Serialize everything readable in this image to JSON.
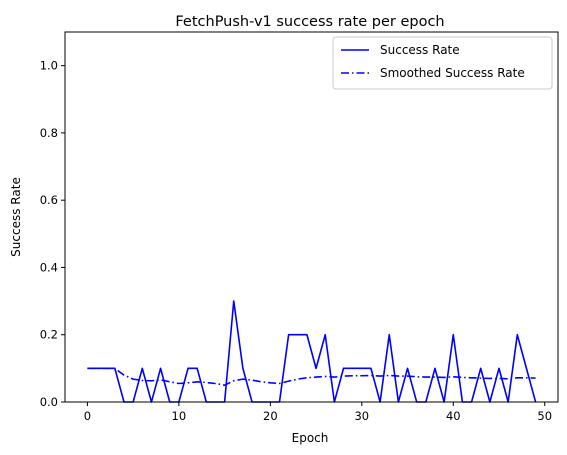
{
  "chart_data": {
    "type": "line",
    "title": "FetchPush-v1 success rate per epoch",
    "xlabel": "Epoch",
    "ylabel": "Success Rate",
    "xlim": [
      -2.45,
      51.45
    ],
    "ylim": [
      0,
      1.1
    ],
    "x_ticks": [
      0,
      10,
      20,
      30,
      40,
      50
    ],
    "y_ticks": [
      0.0,
      0.2,
      0.4,
      0.6,
      0.8,
      1.0
    ],
    "x_tick_labels": [
      "0",
      "10",
      "20",
      "30",
      "40",
      "50"
    ],
    "y_tick_labels": [
      "0.0",
      "0.2",
      "0.4",
      "0.6",
      "0.8",
      "1.0"
    ],
    "grid": false,
    "legend_position": "top-right",
    "x": [
      0,
      1,
      2,
      3,
      4,
      5,
      6,
      7,
      8,
      9,
      10,
      11,
      12,
      13,
      14,
      15,
      16,
      17,
      18,
      19,
      20,
      21,
      22,
      23,
      24,
      25,
      26,
      27,
      28,
      29,
      30,
      31,
      32,
      33,
      34,
      35,
      36,
      37,
      38,
      39,
      40,
      41,
      42,
      43,
      44,
      45,
      46,
      47,
      48,
      49
    ],
    "series": [
      {
        "name": "Success Rate",
        "color": "#0000ff",
        "style": "solid",
        "values": [
          0.1,
          0.1,
          0.1,
          0.1,
          0.0,
          0.0,
          0.1,
          0.0,
          0.1,
          0.0,
          0.0,
          0.1,
          0.1,
          0.0,
          0.0,
          0.0,
          0.3,
          0.1,
          0.0,
          0.0,
          0.0,
          0.0,
          0.2,
          0.2,
          0.2,
          0.1,
          0.2,
          0.0,
          0.1,
          0.1,
          0.1,
          0.1,
          0.0,
          0.2,
          0.0,
          0.1,
          0.0,
          0.0,
          0.1,
          0.0,
          0.2,
          0.0,
          0.0,
          0.1,
          0.0,
          0.1,
          0.0,
          0.2,
          0.1,
          0.0
        ]
      },
      {
        "name": "Smoothed Success Rate",
        "color": "#0000ff",
        "style": "dashdot",
        "values": [
          0.1,
          0.1,
          0.1,
          0.1,
          0.08,
          0.068,
          0.064,
          0.063,
          0.066,
          0.06,
          0.055,
          0.057,
          0.06,
          0.058,
          0.055,
          0.05,
          0.063,
          0.068,
          0.065,
          0.06,
          0.057,
          0.055,
          0.062,
          0.068,
          0.072,
          0.074,
          0.076,
          0.074,
          0.077,
          0.078,
          0.078,
          0.079,
          0.077,
          0.079,
          0.077,
          0.077,
          0.075,
          0.074,
          0.074,
          0.073,
          0.075,
          0.073,
          0.072,
          0.071,
          0.07,
          0.07,
          0.069,
          0.072,
          0.072,
          0.071
        ]
      }
    ]
  }
}
